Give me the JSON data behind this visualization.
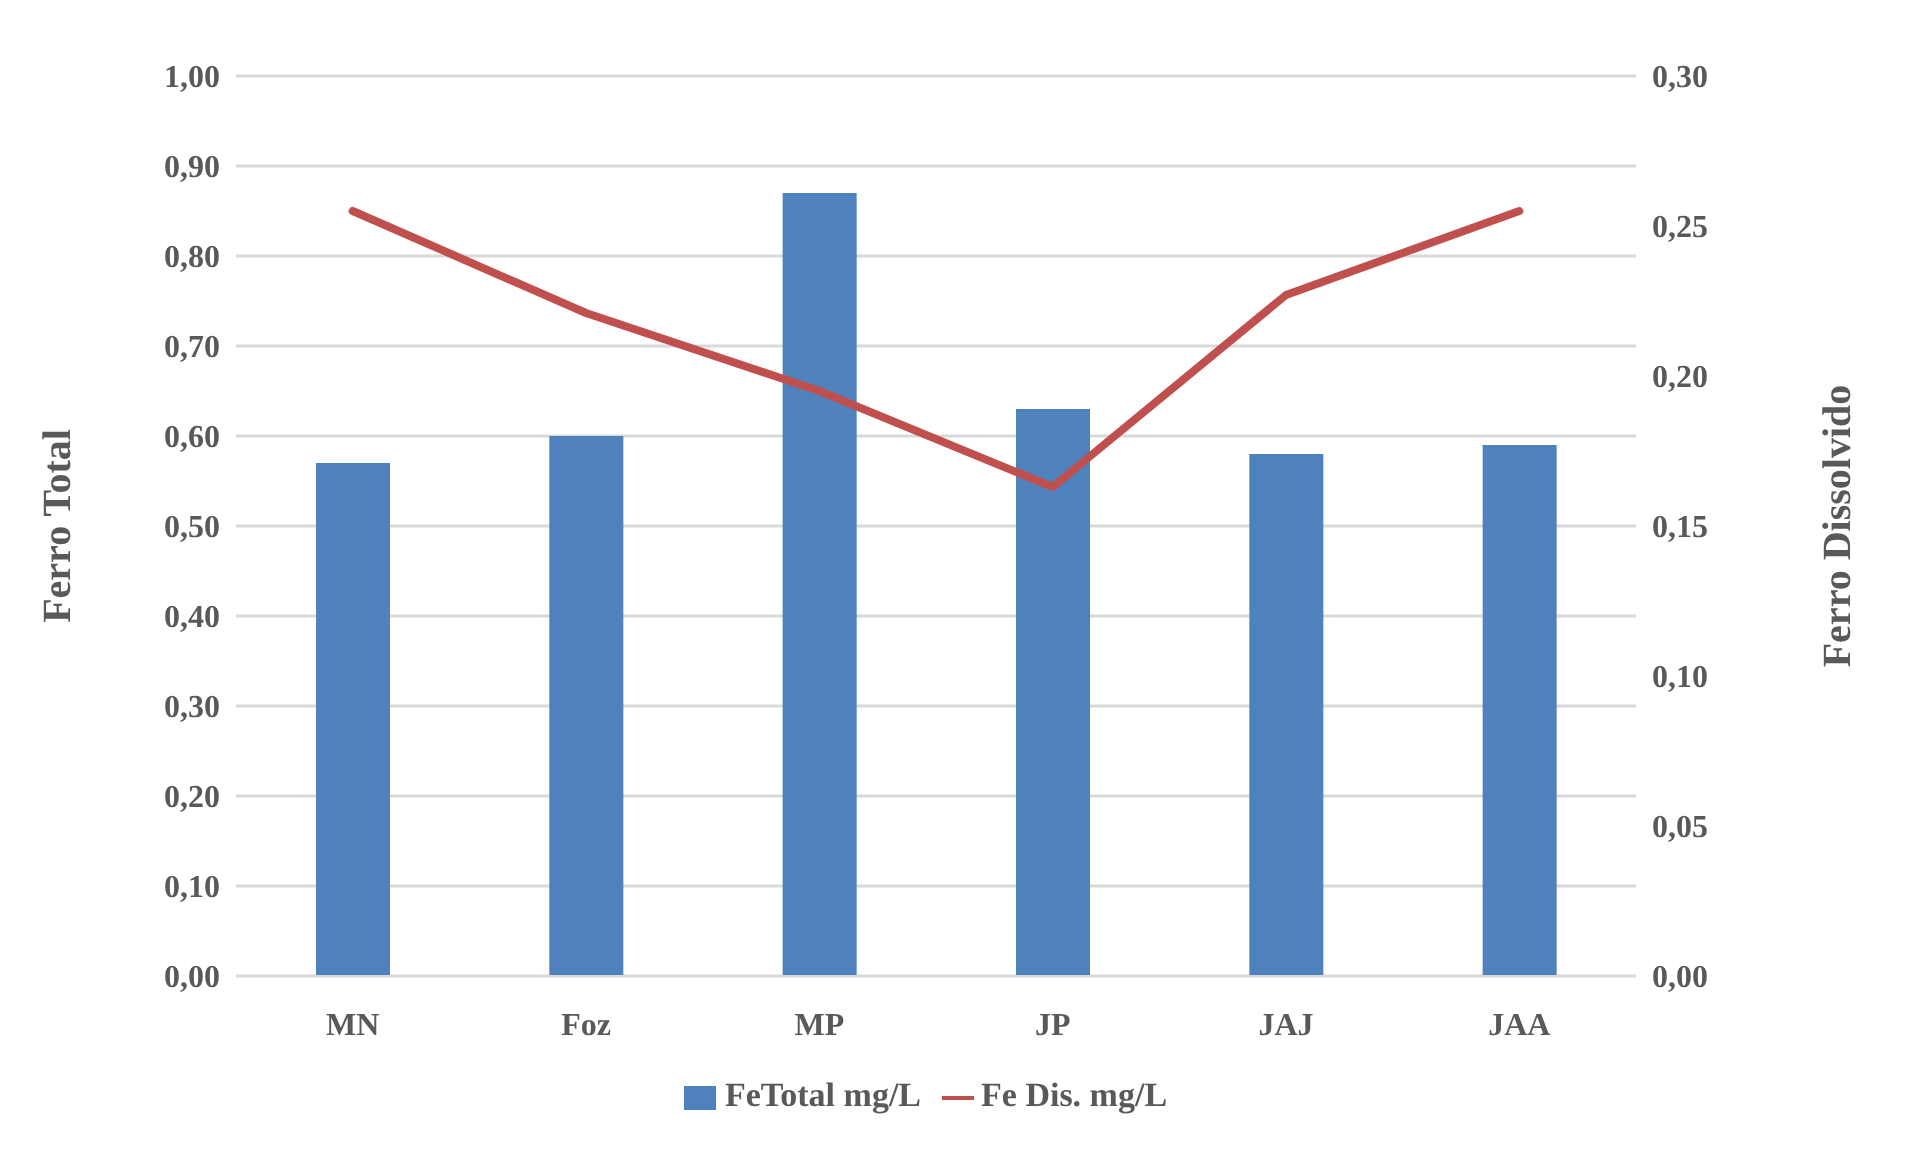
{
  "chart_data": {
    "type": "bar",
    "categories": [
      "MN",
      "Foz",
      "MP",
      "JP",
      "JAJ",
      "JAA"
    ],
    "series": [
      {
        "name": "FeTotal mg/L",
        "color": "#4f81bd",
        "values": [
          0.57,
          0.6,
          0.87,
          0.63,
          0.58,
          0.59
        ]
      },
      {
        "name": "Fe Dis. mg/L",
        "type": "line",
        "axis": "y2",
        "color": "#c0504d",
        "values": [
          0.255,
          0.221,
          0.195,
          0.163,
          0.227,
          0.255
        ]
      }
    ],
    "ylabel": "Ferro Total",
    "y2label": "Ferro Dissolvido",
    "ylim": [
      0,
      1
    ],
    "yticks": [
      {
        "value": 0,
        "label": "0,00"
      },
      {
        "value": 0.1,
        "label": "0,10"
      },
      {
        "value": 0.2,
        "label": "0,20"
      },
      {
        "value": 0.3,
        "label": "0,30"
      },
      {
        "value": 0.4,
        "label": "0,40"
      },
      {
        "value": 0.5,
        "label": "0,50"
      },
      {
        "value": 0.6,
        "label": "0,60"
      },
      {
        "value": 0.7,
        "label": "0,70"
      },
      {
        "value": 0.8,
        "label": "0,80"
      },
      {
        "value": 0.9,
        "label": "0,90"
      },
      {
        "value": 1,
        "label": "1,00"
      }
    ],
    "y2lim": [
      0,
      0.3
    ],
    "y2ticks": [
      {
        "value": 0,
        "label": "0,00"
      },
      {
        "value": 0.05,
        "label": "0,05"
      },
      {
        "value": 0.1,
        "label": "0,10"
      },
      {
        "value": 0.15,
        "label": "0,15"
      },
      {
        "value": 0.2,
        "label": "0,20"
      },
      {
        "value": 0.25,
        "label": "0,25"
      },
      {
        "value": 0.3,
        "label": "0,30"
      }
    ],
    "grid": "y",
    "legend": "bottom",
    "marker": "none",
    "line_style": "solid"
  }
}
